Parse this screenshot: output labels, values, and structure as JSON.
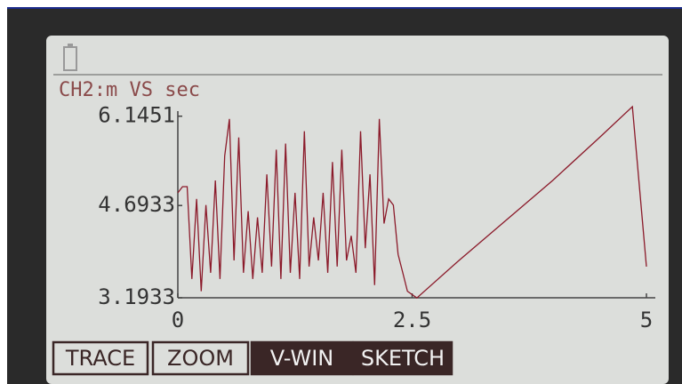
{
  "chart_data": {
    "type": "line",
    "title": "CH2:m VS sec",
    "x": [
      0,
      0.05,
      0.1,
      0.15,
      0.2,
      0.25,
      0.3,
      0.35,
      0.4,
      0.45,
      0.5,
      0.55,
      0.6,
      0.65,
      0.7,
      0.75,
      0.8,
      0.85,
      0.9,
      0.95,
      1.0,
      1.05,
      1.1,
      1.15,
      1.2,
      1.25,
      1.3,
      1.35,
      1.4,
      1.45,
      1.5,
      1.55,
      1.6,
      1.65,
      1.7,
      1.75,
      1.8,
      1.85,
      1.9,
      1.95,
      2.0,
      2.05,
      2.1,
      2.15,
      2.2,
      2.25,
      2.3,
      2.35,
      2.4,
      2.45,
      2.55,
      3.0,
      3.5,
      4.0,
      4.5,
      4.85,
      5.0
    ],
    "values": [
      4.9,
      5.0,
      5.0,
      3.5,
      4.8,
      3.3,
      4.7,
      3.6,
      5.1,
      3.5,
      5.5,
      6.1,
      3.8,
      5.8,
      3.6,
      4.6,
      3.5,
      4.5,
      3.6,
      5.2,
      3.7,
      5.6,
      3.5,
      5.7,
      3.6,
      4.9,
      3.5,
      5.9,
      3.7,
      4.5,
      3.8,
      4.9,
      3.6,
      5.4,
      3.7,
      5.6,
      3.8,
      4.2,
      3.6,
      5.9,
      4.0,
      5.2,
      3.4,
      6.1,
      4.4,
      4.8,
      4.7,
      3.9,
      3.6,
      3.3,
      3.19,
      3.8,
      4.45,
      5.1,
      5.8,
      6.3,
      3.7
    ],
    "color": "#8b1a2a",
    "xlim": [
      0,
      5
    ],
    "xticks": [
      0,
      2.5,
      5
    ],
    "ylim": [
      3.1933,
      6.3
    ],
    "yticks": [
      3.1933,
      4.6933,
      6.1451
    ]
  },
  "menu": [
    "TRACE",
    "ZOOM",
    "V-WIN",
    "SKETCH"
  ]
}
